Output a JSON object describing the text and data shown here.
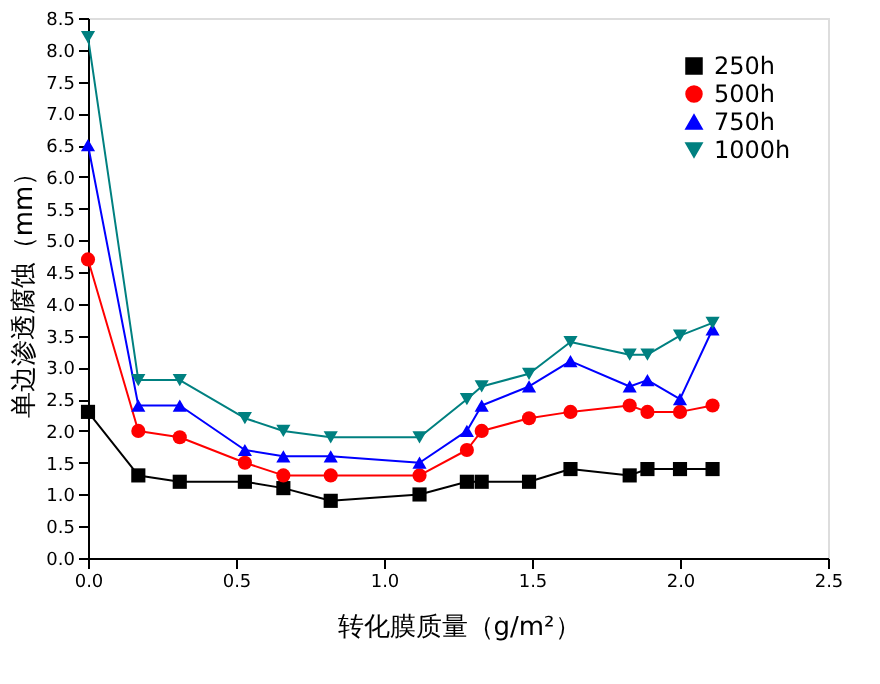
{
  "chart_data": {
    "type": "line",
    "xlabel": "转化膜质量（g/m²）",
    "ylabel": "单边渗透腐蚀（mm）",
    "x": [
      0,
      0.17,
      0.31,
      0.53,
      0.66,
      0.82,
      1.12,
      1.28,
      1.33,
      1.49,
      1.63,
      1.83,
      1.89,
      2.0,
      2.11
    ],
    "series": [
      {
        "name": "250h",
        "color": "#000000",
        "marker": "square",
        "values": [
          2.3,
          1.3,
          1.2,
          1.2,
          1.1,
          0.9,
          1.0,
          1.2,
          1.2,
          1.2,
          1.4,
          1.3,
          1.4,
          1.4,
          1.4
        ]
      },
      {
        "name": "500h",
        "color": "#ff0000",
        "marker": "circle",
        "values": [
          4.7,
          2.0,
          1.9,
          1.5,
          1.3,
          1.3,
          1.3,
          1.7,
          2.0,
          2.2,
          2.3,
          2.4,
          2.3,
          2.3,
          2.4
        ]
      },
      {
        "name": "750h",
        "color": "#0000ff",
        "marker": "triangle",
        "values": [
          6.5,
          2.4,
          2.4,
          1.7,
          1.6,
          1.6,
          1.5,
          2.0,
          2.4,
          2.7,
          3.1,
          2.7,
          2.8,
          2.5,
          3.6
        ]
      },
      {
        "name": "1000h",
        "color": "#008080",
        "marker": "triangle-down",
        "values": [
          8.2,
          2.8,
          2.8,
          2.2,
          2.0,
          1.9,
          1.9,
          2.5,
          2.7,
          2.9,
          3.4,
          3.2,
          3.2,
          3.5,
          3.7
        ]
      }
    ],
    "xlim": [
      0,
      2.5
    ],
    "xticks": [
      {
        "value": 0,
        "label": "0.0"
      },
      0.5,
      {
        "value": 1,
        "label": "1.0"
      },
      1.5,
      {
        "value": 2,
        "label": "2.0"
      },
      2.5
    ],
    "ylim": [
      0,
      8.5
    ],
    "yticks": [
      {
        "value": 0,
        "label": "0.0"
      },
      0.5,
      {
        "value": 1,
        "label": "1.0"
      },
      1.5,
      {
        "value": 2,
        "label": "2.0"
      },
      2.5,
      {
        "value": 3,
        "label": "3.0"
      },
      3.5,
      {
        "value": 4,
        "label": "4.0"
      },
      4.5,
      {
        "value": 5,
        "label": "5.0"
      },
      5.5,
      {
        "value": 6,
        "label": "6.0"
      },
      6.5,
      {
        "value": 7,
        "label": "7.0"
      },
      7.5,
      {
        "value": 8,
        "label": "8.0"
      },
      8.5
    ],
    "grid": false,
    "legend": "top right"
  }
}
